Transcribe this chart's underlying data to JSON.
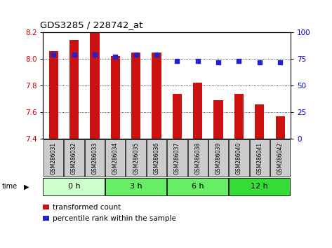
{
  "title": "GDS3285 / 228742_at",
  "samples": [
    "GSM286031",
    "GSM286032",
    "GSM286033",
    "GSM286034",
    "GSM286035",
    "GSM286036",
    "GSM286037",
    "GSM286038",
    "GSM286039",
    "GSM286040",
    "GSM286041",
    "GSM286042"
  ],
  "transformed_count": [
    8.06,
    8.14,
    8.2,
    8.02,
    8.05,
    8.05,
    7.74,
    7.82,
    7.69,
    7.74,
    7.66,
    7.57
  ],
  "percentile_rank": [
    79,
    79,
    79,
    77,
    79,
    79,
    73,
    73,
    72,
    73,
    72,
    72
  ],
  "bar_bottom": 7.4,
  "ylim_left": [
    7.4,
    8.2
  ],
  "ylim_right": [
    0,
    100
  ],
  "yticks_left": [
    7.4,
    7.6,
    7.8,
    8.0,
    8.2
  ],
  "yticks_right": [
    0,
    25,
    50,
    75,
    100
  ],
  "bar_color": "#cc1111",
  "dot_color": "#2222cc",
  "group_labels": [
    "0 h",
    "3 h",
    "6 h",
    "12 h"
  ],
  "group_colors": [
    "#ccffcc",
    "#66ee66",
    "#66ee66",
    "#33dd33"
  ],
  "group_sizes": [
    3,
    3,
    3,
    3
  ],
  "bg_color": "#ffffff",
  "tick_label_color_left": "#cc0000",
  "tick_label_color_right": "#0000cc",
  "xtick_bg": "#cccccc",
  "legend_red": "transformed count",
  "legend_blue": "percentile rank within the sample"
}
